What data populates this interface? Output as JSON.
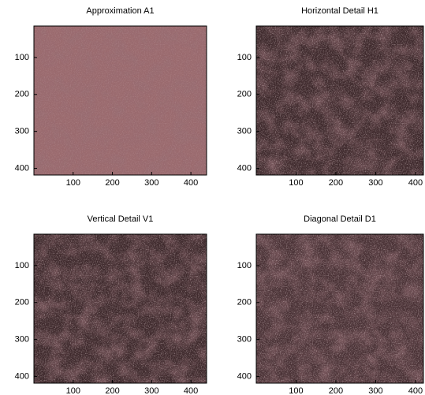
{
  "chart_data": [
    {
      "type": "image",
      "title": "Approximation A1",
      "color": "#9a6a6e",
      "xlim": [
        0,
        440
      ],
      "ylim": [
        15,
        418
      ],
      "xticks": [
        100,
        200,
        300,
        400
      ],
      "yticks": [
        100,
        200,
        300,
        400
      ]
    },
    {
      "type": "image",
      "title": "Horizontal Detail H1",
      "color": "#3f2a2d",
      "xlim": [
        0,
        420
      ],
      "ylim": [
        15,
        418
      ],
      "xticks": [
        100,
        200,
        300,
        400
      ],
      "yticks": [
        100,
        200,
        300,
        400
      ]
    },
    {
      "type": "image",
      "title": "Vertical Detail V1",
      "color": "#3f2a2d",
      "xlim": [
        0,
        440
      ],
      "ylim": [
        15,
        418
      ],
      "xticks": [
        100,
        200,
        300,
        400
      ],
      "yticks": [
        100,
        200,
        300,
        400
      ]
    },
    {
      "type": "image",
      "title": "Diagonal Detail D1",
      "color": "#4a3236",
      "xlim": [
        0,
        420
      ],
      "ylim": [
        15,
        418
      ],
      "xticks": [
        100,
        200,
        300,
        400
      ],
      "yticks": [
        100,
        200,
        300,
        400
      ]
    }
  ]
}
